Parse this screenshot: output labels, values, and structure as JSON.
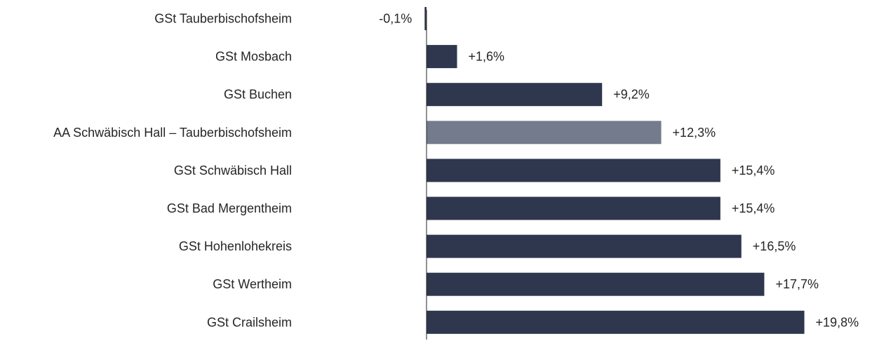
{
  "chart_data": {
    "type": "bar",
    "orientation": "horizontal",
    "categories": [
      "GSt Tauberbischofsheim",
      "GSt Mosbach",
      "GSt Buchen",
      "AA Schwäbisch Hall – Tauberbischofsheim",
      "GSt Schwäbisch Hall",
      "GSt Bad Mergentheim",
      "GSt Hohenlohekreis",
      "GSt Wertheim",
      "GSt Crailsheim"
    ],
    "values": [
      -0.1,
      1.6,
      9.2,
      12.3,
      15.4,
      15.4,
      16.5,
      17.7,
      19.8
    ],
    "value_labels": [
      "-0,1%",
      "+1,6%",
      "+9,2%",
      "+12,3%",
      "+15,4%",
      "+15,4%",
      "+16,5%",
      "+17,7%",
      "+19,8%"
    ],
    "highlight_index": 3,
    "xlim": [
      0,
      19.8
    ],
    "grid": false,
    "legend": "none",
    "colors": {
      "bar": "#2e374d",
      "highlight": "#737b8d",
      "axis": "#262626",
      "text": "#262626"
    }
  }
}
